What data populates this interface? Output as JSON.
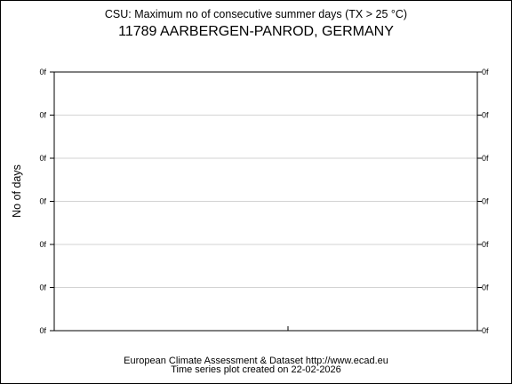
{
  "chart_data": {
    "type": "line",
    "title": "CSU: Maximum no of consecutive summer days (TX > 25 °C)",
    "subtitle": "11789 AARBERGEN-PANROD, GERMANY",
    "xlabel": "",
    "ylabel": "No of days",
    "y_tick_labels": [
      "0f",
      "0f",
      "0f",
      "0f",
      "0f",
      "0f",
      "0f"
    ],
    "x_tick_labels": [],
    "series": [],
    "grid": true
  },
  "footer": {
    "line1": "European Climate Assessment & Dataset  http://www.ecad.eu",
    "line2": "Time series plot created on 22-02-2026"
  },
  "colors": {
    "axis": "#000000",
    "grid": "#d3d3d3",
    "background": "#ffffff"
  }
}
